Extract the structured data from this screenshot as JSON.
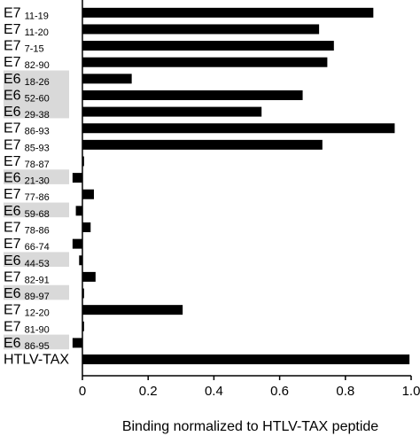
{
  "chart_data": {
    "type": "bar",
    "orientation": "horizontal",
    "title": "",
    "xlabel": "Binding normalized to HTLV-TAX peptide",
    "ylabel": "",
    "xlim": [
      0,
      1.0
    ],
    "xticks": [
      "0",
      "0.2",
      "0.4",
      "0.6",
      "0.8",
      "1.0"
    ],
    "grid": false,
    "highlight_color": "#d9d9d9",
    "bar_color": "#000000",
    "categories": [
      {
        "protein": "E7",
        "range": "11-19",
        "value": 0.885,
        "highlight": false
      },
      {
        "protein": "E7",
        "range": "11-20",
        "value": 0.72,
        "highlight": false
      },
      {
        "protein": "E7",
        "range": "7-15",
        "value": 0.765,
        "highlight": false
      },
      {
        "protein": "E7",
        "range": "82-90",
        "value": 0.745,
        "highlight": false
      },
      {
        "protein": "E6",
        "range": "18-26",
        "value": 0.15,
        "highlight": true
      },
      {
        "protein": "E6",
        "range": "52-60",
        "value": 0.67,
        "highlight": true
      },
      {
        "protein": "E6",
        "range": "29-38",
        "value": 0.545,
        "highlight": true
      },
      {
        "protein": "E7",
        "range": "86-93",
        "value": 0.95,
        "highlight": false
      },
      {
        "protein": "E7",
        "range": "85-93",
        "value": 0.73,
        "highlight": false
      },
      {
        "protein": "E7",
        "range": "78-87",
        "value": 0.005,
        "highlight": false
      },
      {
        "protein": "E6",
        "range": "21-30",
        "value": -0.03,
        "highlight": true
      },
      {
        "protein": "E7",
        "range": "77-86",
        "value": 0.035,
        "highlight": false
      },
      {
        "protein": "E6",
        "range": "59-68",
        "value": -0.02,
        "highlight": true
      },
      {
        "protein": "E7",
        "range": "78-86",
        "value": 0.025,
        "highlight": false
      },
      {
        "protein": "E7",
        "range": "66-74",
        "value": -0.03,
        "highlight": false
      },
      {
        "protein": "E6",
        "range": "44-53",
        "value": -0.01,
        "highlight": true
      },
      {
        "protein": "E7",
        "range": "82-91",
        "value": 0.04,
        "highlight": false
      },
      {
        "protein": "E6",
        "range": "89-97",
        "value": 0.005,
        "highlight": true
      },
      {
        "protein": "E7",
        "range": "12-20",
        "value": 0.305,
        "highlight": false
      },
      {
        "protein": "E7",
        "range": "81-90",
        "value": 0.005,
        "highlight": false
      },
      {
        "protein": "E6",
        "range": "86-95",
        "value": -0.03,
        "highlight": true
      },
      {
        "protein": "HTLV-TAX",
        "range": "",
        "value": 0.995,
        "highlight": false
      }
    ]
  }
}
